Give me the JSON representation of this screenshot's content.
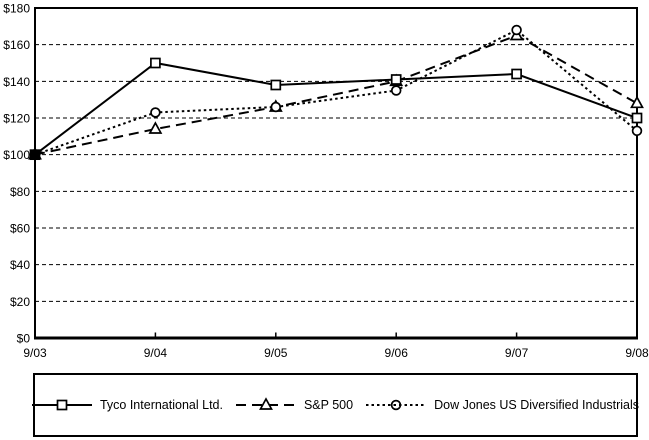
{
  "chart_data": {
    "type": "line",
    "title": "",
    "xlabel": "",
    "ylabel": "",
    "categories": [
      "9/03",
      "9/04",
      "9/05",
      "9/06",
      "9/07",
      "9/08"
    ],
    "series": [
      {
        "name": "Tyco International Ltd.",
        "marker": "square",
        "line_style": "solid",
        "values": [
          100,
          150,
          138,
          141,
          144,
          120
        ]
      },
      {
        "name": "S&P 500",
        "marker": "triangle",
        "line_style": "dashed",
        "values": [
          100,
          114,
          126,
          140,
          165,
          128
        ]
      },
      {
        "name": "Dow Jones US Diversified Industrials",
        "marker": "circle",
        "line_style": "dotted",
        "values": [
          100,
          123,
          126,
          135,
          168,
          113
        ]
      }
    ],
    "ylim": [
      0,
      180
    ],
    "ytick_step": 20,
    "y_tick_labels": [
      "$0",
      "$20",
      "$40",
      "$60",
      "$80",
      "$100",
      "$120",
      "$140",
      "$160",
      "$180"
    ],
    "grid": "horizontal-dashed",
    "legend_position": "bottom-box",
    "line_color": "#000000",
    "marker_fill": "#ffffff",
    "background_color": "#ffffff"
  }
}
